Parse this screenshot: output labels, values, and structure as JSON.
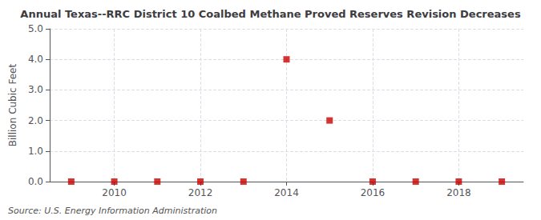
{
  "chart_data": {
    "type": "scatter",
    "title": "Annual Texas--RRC District 10 Coalbed Methane Proved Reserves Revision Decreases",
    "ylabel": "Billion Cubic Feet",
    "source": "Source: U.S. Energy Information Administration",
    "x": [
      2009,
      2010,
      2011,
      2012,
      2013,
      2014,
      2015,
      2016,
      2017,
      2018,
      2019
    ],
    "values": [
      0.0,
      0.0,
      0.0,
      0.0,
      0.0,
      4.0,
      2.0,
      0.0,
      0.0,
      0.0,
      0.0
    ],
    "color": "#cc0000",
    "marker": "square",
    "xlim": [
      2008.5,
      2019.5
    ],
    "xticks": [
      2010,
      2012,
      2014,
      2016,
      2018
    ],
    "ylim": [
      0.0,
      5.0
    ],
    "yticks": [
      {
        "value": 0,
        "label": "0.0"
      },
      {
        "value": 1,
        "label": "1.0"
      },
      {
        "value": 2,
        "label": "2.0"
      },
      {
        "value": 3,
        "label": "3.0"
      },
      {
        "value": 4,
        "label": "4.0"
      },
      {
        "value": 5,
        "label": "5.0"
      }
    ],
    "grid": true
  }
}
